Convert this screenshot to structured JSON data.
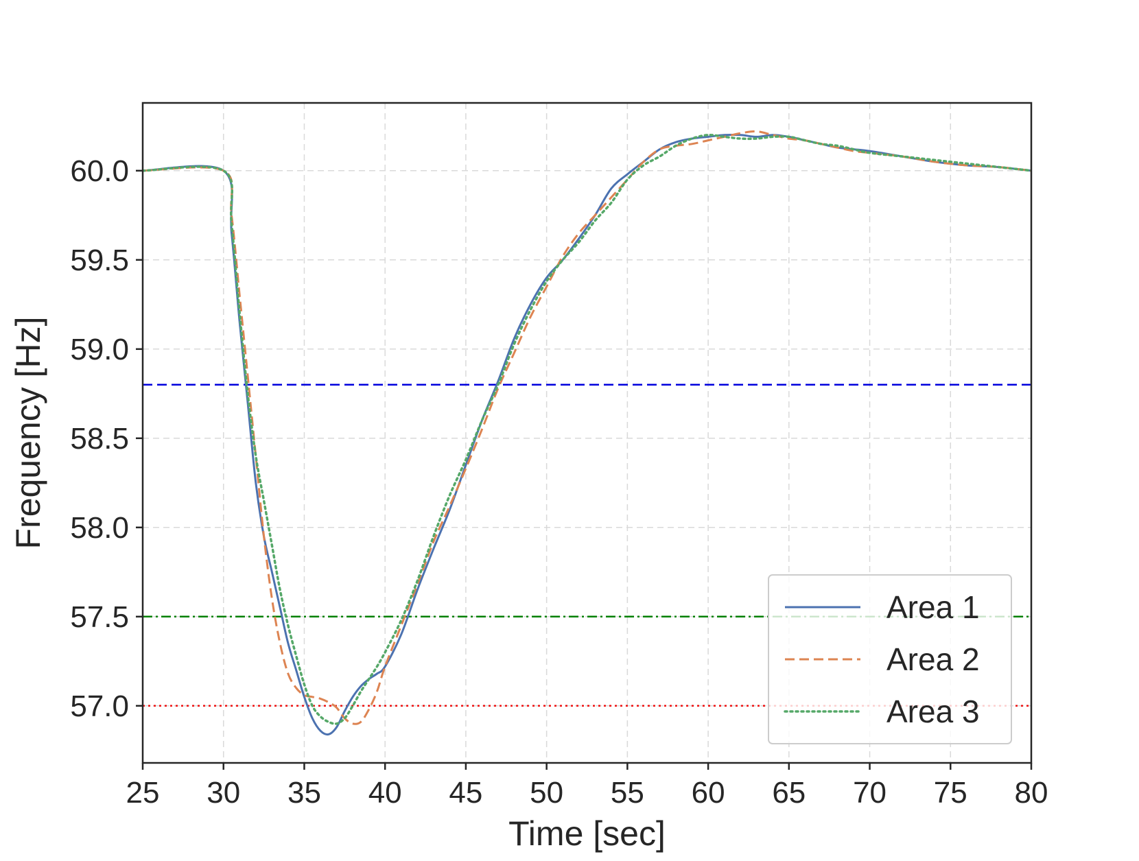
{
  "chart_data": {
    "type": "line",
    "title": "",
    "xlabel": "Time [sec]",
    "ylabel": "Frequency [Hz]",
    "xlim": [
      25,
      80
    ],
    "ylim": [
      56.68,
      60.38
    ],
    "xticks": [
      25,
      30,
      35,
      40,
      45,
      50,
      55,
      60,
      65,
      70,
      75,
      80
    ],
    "yticks": [
      57.0,
      57.5,
      58.0,
      58.5,
      59.0,
      59.5,
      60.0
    ],
    "ytick_labels": [
      "57.0",
      "57.5",
      "58.0",
      "58.5",
      "59.0",
      "59.5",
      "60.0"
    ],
    "grid": true,
    "legend_position": "lower-right",
    "series": [
      {
        "name": "Area 1",
        "color": "#4c72b0",
        "style": "solid",
        "x": [
          25,
          30,
          30.5,
          31,
          31.5,
          32,
          32.5,
          33,
          33.5,
          34,
          34.5,
          35,
          35.5,
          36,
          36.5,
          37,
          37.5,
          38,
          38.5,
          39,
          39.5,
          40,
          41,
          42,
          43,
          44,
          45,
          46,
          47,
          48,
          49,
          50,
          51,
          52,
          53,
          54,
          55,
          56,
          57,
          58,
          59,
          60,
          61,
          62,
          63,
          64,
          65,
          66,
          67,
          68,
          69,
          70,
          72,
          74,
          76,
          78,
          80
        ],
        "y": [
          60.0,
          60.0,
          59.65,
          59.15,
          58.7,
          58.25,
          57.95,
          57.75,
          57.55,
          57.35,
          57.2,
          57.05,
          56.93,
          56.86,
          56.84,
          56.88,
          56.97,
          57.05,
          57.11,
          57.15,
          57.18,
          57.22,
          57.4,
          57.65,
          57.88,
          58.1,
          58.35,
          58.6,
          58.82,
          59.06,
          59.25,
          59.4,
          59.5,
          59.62,
          59.75,
          59.9,
          59.98,
          60.05,
          60.12,
          60.16,
          60.18,
          60.19,
          60.2,
          60.2,
          60.19,
          60.2,
          60.19,
          60.17,
          60.15,
          60.13,
          60.12,
          60.11,
          60.08,
          60.05,
          60.03,
          60.02,
          60.0
        ]
      },
      {
        "name": "Area 2",
        "color": "#dd8452",
        "style": "dashed",
        "x": [
          25,
          30,
          30.5,
          31,
          31.5,
          32,
          32.5,
          33,
          33.5,
          34,
          34.5,
          35,
          35.5,
          36,
          36.5,
          37,
          37.5,
          38,
          38.5,
          39,
          39.5,
          40,
          41,
          42,
          43,
          44,
          45,
          46,
          47,
          48,
          49,
          50,
          51,
          52,
          53,
          54,
          55,
          56,
          57,
          58,
          59,
          60,
          61,
          62,
          63,
          64,
          65,
          66,
          67,
          68,
          69,
          70,
          72,
          74,
          76,
          78,
          80
        ],
        "y": [
          60.0,
          60.0,
          59.75,
          59.3,
          58.85,
          58.4,
          57.95,
          57.6,
          57.35,
          57.18,
          57.1,
          57.06,
          57.05,
          57.04,
          57.02,
          56.99,
          56.93,
          56.9,
          56.91,
          56.98,
          57.08,
          57.22,
          57.45,
          57.68,
          57.92,
          58.12,
          58.33,
          58.55,
          58.78,
          58.98,
          59.18,
          59.35,
          59.52,
          59.65,
          59.75,
          59.85,
          59.95,
          60.05,
          60.12,
          60.14,
          60.15,
          60.17,
          60.19,
          60.21,
          60.22,
          60.2,
          60.18,
          60.17,
          60.15,
          60.13,
          60.11,
          60.1,
          60.08,
          60.05,
          60.03,
          60.02,
          60.0
        ]
      },
      {
        "name": "Area 3",
        "color": "#55a868",
        "style": "dotted",
        "x": [
          25,
          30,
          30.5,
          31,
          31.5,
          32,
          32.5,
          33,
          33.5,
          34,
          34.5,
          35,
          35.5,
          36,
          36.5,
          37,
          37.5,
          38,
          38.5,
          39,
          39.5,
          40,
          41,
          42,
          43,
          44,
          45,
          46,
          47,
          48,
          49,
          50,
          51,
          52,
          53,
          54,
          55,
          56,
          57,
          58,
          59,
          60,
          61,
          62,
          63,
          64,
          65,
          66,
          67,
          68,
          69,
          70,
          72,
          74,
          76,
          78,
          80
        ],
        "y": [
          60.0,
          60.0,
          59.7,
          59.2,
          58.75,
          58.4,
          58.15,
          57.9,
          57.65,
          57.45,
          57.28,
          57.12,
          57.0,
          56.94,
          56.91,
          56.9,
          56.93,
          57.0,
          57.08,
          57.15,
          57.22,
          57.3,
          57.48,
          57.7,
          57.95,
          58.18,
          58.38,
          58.6,
          58.8,
          59.03,
          59.22,
          59.38,
          59.5,
          59.6,
          59.72,
          59.82,
          59.95,
          60.03,
          60.08,
          60.14,
          60.18,
          60.2,
          60.19,
          60.18,
          60.18,
          60.19,
          60.19,
          60.17,
          60.15,
          60.14,
          60.12,
          60.1,
          60.08,
          60.06,
          60.04,
          60.02,
          60.0
        ]
      }
    ],
    "reference_lines": [
      {
        "y": 58.8,
        "color": "#0000dd",
        "style": "dashed"
      },
      {
        "y": 57.5,
        "color": "#008000",
        "style": "dashdot"
      },
      {
        "y": 57.0,
        "color": "#ee1111",
        "style": "dotted"
      }
    ]
  }
}
